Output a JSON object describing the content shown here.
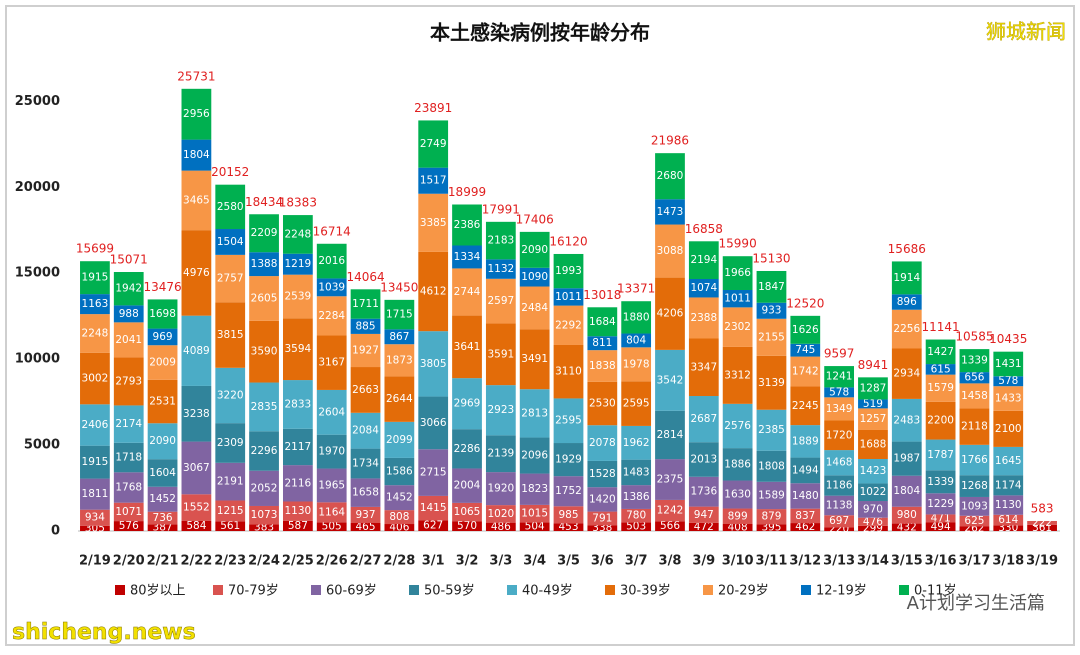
{
  "chart_data": {
    "type": "bar",
    "stacked": true,
    "title": "本土感染病例按年龄分布",
    "categories": [
      "2/19",
      "2/20",
      "2/21",
      "2/22",
      "2/23",
      "2/24",
      "2/25",
      "2/26",
      "2/27",
      "2/28",
      "3/1",
      "3/2",
      "3/3",
      "3/4",
      "3/5",
      "3/6",
      "3/7",
      "3/8",
      "3/9",
      "3/10",
      "3/11",
      "3/12",
      "3/13",
      "3/14",
      "3/15",
      "3/16",
      "3/17",
      "3/18",
      "3/19"
    ],
    "series": [
      {
        "name": "80岁以上",
        "color": "#c00000",
        "values": [
          305,
          576,
          387,
          584,
          561,
          383,
          587,
          505,
          465,
          406,
          627,
          570,
          486,
          504,
          453,
          338,
          503,
          566,
          472,
          408,
          395,
          462,
          220,
          299,
          432,
          494,
          262,
          330,
          361
        ]
      },
      {
        "name": "70-79岁",
        "color": "#d9534f",
        "values": [
          934,
          1071,
          736,
          1552,
          1215,
          1073,
          1130,
          1164,
          937,
          808,
          1415,
          1065,
          1020,
          1015,
          985,
          791,
          780,
          1242,
          947,
          899,
          879,
          837,
          697,
          476,
          980,
          471,
          625,
          614,
          222
        ]
      },
      {
        "name": "60-69岁",
        "color": "#8064a2",
        "values": [
          1811,
          1768,
          1452,
          3067,
          2191,
          2052,
          2116,
          1965,
          1658,
          1452,
          2715,
          2004,
          1920,
          1823,
          1752,
          1420,
          1386,
          2375,
          1736,
          1630,
          1589,
          1480,
          1138,
          970,
          1804,
          1229,
          1093,
          1130,
          0
        ]
      },
      {
        "name": "50-59岁",
        "color": "#31849b",
        "values": [
          1915,
          1718,
          1604,
          3238,
          2309,
          2296,
          2117,
          1970,
          1734,
          1586,
          3066,
          2286,
          2139,
          2096,
          1929,
          1528,
          1483,
          2814,
          2013,
          1886,
          1808,
          1494,
          1186,
          1022,
          1987,
          1339,
          1268,
          1174,
          0
        ]
      },
      {
        "name": "40-49岁",
        "color": "#4bacc6",
        "values": [
          2406,
          2174,
          2090,
          4089,
          3220,
          2835,
          2833,
          2604,
          2084,
          2099,
          3805,
          2969,
          2923,
          2813,
          2595,
          2078,
          1962,
          3542,
          2687,
          2576,
          2385,
          1889,
          1468,
          1423,
          2483,
          1787,
          1766,
          1645,
          0
        ]
      },
      {
        "name": "30-39岁",
        "color": "#e36c09",
        "values": [
          3002,
          2793,
          2531,
          4976,
          3815,
          3590,
          3594,
          3167,
          2663,
          2644,
          4612,
          3641,
          3591,
          3491,
          3110,
          2530,
          2595,
          4206,
          3347,
          3312,
          3139,
          2245,
          1720,
          1688,
          2934,
          2200,
          2118,
          2100,
          0
        ]
      },
      {
        "name": "20-29岁",
        "color": "#f79646",
        "values": [
          2248,
          2041,
          2009,
          3465,
          2757,
          2605,
          2539,
          2284,
          1927,
          1873,
          3385,
          2744,
          2597,
          2484,
          2292,
          1838,
          1978,
          3088,
          2388,
          2302,
          2155,
          1742,
          1349,
          1257,
          2256,
          1579,
          1458,
          1433,
          0
        ]
      },
      {
        "name": "12-19岁",
        "color": "#0070c0",
        "values": [
          1163,
          988,
          969,
          1804,
          1504,
          1388,
          1219,
          1039,
          885,
          867,
          1517,
          1334,
          1132,
          1090,
          1011,
          811,
          804,
          1473,
          1074,
          1011,
          933,
          745,
          578,
          519,
          896,
          615,
          656,
          578,
          0
        ]
      },
      {
        "name": "0-11岁",
        "color": "#00b050",
        "values": [
          1915,
          1942,
          1698,
          2956,
          2580,
          2209,
          2248,
          2016,
          1711,
          1715,
          2749,
          2386,
          2183,
          2090,
          1993,
          1684,
          1880,
          2680,
          2194,
          1966,
          1847,
          1626,
          1241,
          1287,
          1914,
          1427,
          1339,
          1431,
          0
        ]
      }
    ],
    "totals": [
      15699,
      15071,
      13476,
      25731,
      20152,
      18434,
      18383,
      16714,
      14064,
      13450,
      23891,
      18999,
      17991,
      17406,
      16120,
      13018,
      13371,
      21986,
      16858,
      15990,
      15130,
      12520,
      9597,
      8941,
      15686,
      11141,
      10585,
      10435,
      583
    ],
    "ylim": [
      0,
      27000
    ],
    "yticks": [
      0,
      5000,
      10000,
      15000,
      20000,
      25000
    ],
    "grid": false,
    "watermark": "狮城新闻",
    "footer_site": "shicheng.news",
    "footer_account": "A计划学习生活篇"
  }
}
